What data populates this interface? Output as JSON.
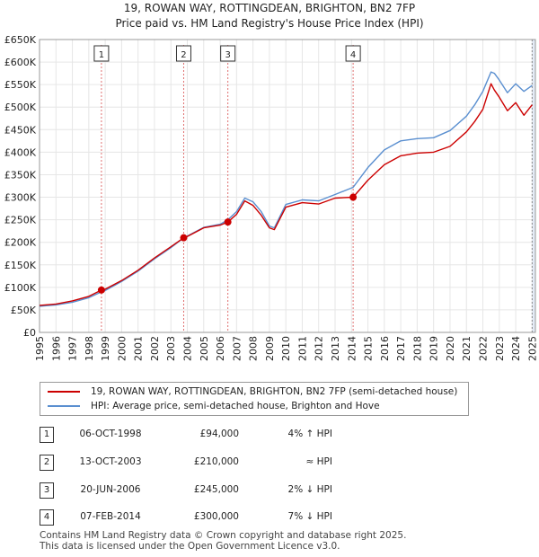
{
  "title_line1": "19, ROWAN WAY, ROTTINGDEAN, BRIGHTON, BN2 7FP",
  "title_line2": "Price paid vs. HM Land Registry's House Price Index (HPI)",
  "legend": {
    "property_label": "19, ROWAN WAY, ROTTINGDEAN, BRIGHTON, BN2 7FP (semi-detached house)",
    "hpi_label": "HPI: Average price, semi-detached house, Brighton and Hove"
  },
  "colors": {
    "property": "#cc0000",
    "hpi": "#5a8fd0",
    "shade": "#dde6f4",
    "grid": "#e6e6e6"
  },
  "sales": [
    {
      "num": "1",
      "date": "06-OCT-1998",
      "price": "£94,000",
      "hpi": "4% ↑ HPI"
    },
    {
      "num": "2",
      "date": "13-OCT-2003",
      "price": "£210,000",
      "hpi": "≈ HPI"
    },
    {
      "num": "3",
      "date": "20-JUN-2006",
      "price": "£245,000",
      "hpi": "2% ↓ HPI"
    },
    {
      "num": "4",
      "date": "07-FEB-2014",
      "price": "£300,000",
      "hpi": "7% ↓ HPI"
    }
  ],
  "footer_line1": "Contains HM Land Registry data © Crown copyright and database right 2025.",
  "footer_line2": "This data is licensed under the Open Government Licence v3.0.",
  "chart_data": {
    "type": "line",
    "title": "19, ROWAN WAY, ROTTINGDEAN, BRIGHTON, BN2 7FP — Price paid vs. HM Land Registry's House Price Index (HPI)",
    "xlabel": "",
    "ylabel": "",
    "xlim": [
      1995,
      2025.2
    ],
    "ylim": [
      0,
      650000
    ],
    "y_ticks": [
      0,
      50000,
      100000,
      150000,
      200000,
      250000,
      300000,
      350000,
      400000,
      450000,
      500000,
      550000,
      600000,
      650000
    ],
    "y_tick_labels": [
      "£0",
      "£50K",
      "£100K",
      "£150K",
      "£200K",
      "£250K",
      "£300K",
      "£350K",
      "£400K",
      "£450K",
      "£500K",
      "£550K",
      "£600K",
      "£650K"
    ],
    "x_ticks": [
      1995,
      1996,
      1997,
      1998,
      1999,
      2000,
      2001,
      2002,
      2003,
      2004,
      2005,
      2006,
      2007,
      2008,
      2009,
      2010,
      2011,
      2012,
      2013,
      2014,
      2015,
      2016,
      2017,
      2018,
      2019,
      2020,
      2021,
      2022,
      2023,
      2024,
      2025
    ],
    "grid": true,
    "legend_position": "below",
    "series": [
      {
        "name": "19, ROWAN WAY, ROTTINGDEAN, BRIGHTON, BN2 7FP (semi-detached house)",
        "x": [
          1995,
          1996,
          1997,
          1998,
          1998.77,
          1999,
          2000,
          2001,
          2002,
          2003,
          2003.78,
          2004,
          2005,
          2006,
          2006.47,
          2007,
          2007.5,
          2008,
          2008.5,
          2009,
          2009.3,
          2010,
          2011,
          2012,
          2013,
          2014.1,
          2015,
          2016,
          2017,
          2018,
          2019,
          2020,
          2021,
          2021.5,
          2022,
          2022.5,
          2022.7,
          2023,
          2023.5,
          2024,
          2024.5,
          2025
        ],
        "values": [
          60000,
          63000,
          70000,
          80000,
          94000,
          96000,
          115000,
          138000,
          165000,
          190000,
          210000,
          213000,
          232000,
          238000,
          245000,
          262000,
          292000,
          282000,
          260000,
          232000,
          228000,
          278000,
          288000,
          285000,
          298000,
          300000,
          338000,
          372000,
          392000,
          398000,
          400000,
          413000,
          445000,
          468000,
          495000,
          552000,
          538000,
          522000,
          492000,
          510000,
          482000,
          505000
        ]
      },
      {
        "name": "HPI: Average price, semi-detached house, Brighton and Hove",
        "x": [
          1995,
          1996,
          1997,
          1998,
          1998.77,
          1999,
          2000,
          2001,
          2002,
          2003,
          2003.78,
          2004,
          2005,
          2006,
          2006.47,
          2007,
          2007.5,
          2008,
          2008.5,
          2009,
          2009.3,
          2010,
          2011,
          2012,
          2013,
          2014.1,
          2015,
          2016,
          2017,
          2018,
          2019,
          2020,
          2021,
          2021.5,
          2022,
          2022.5,
          2022.7,
          2023,
          2023.5,
          2024,
          2024.5,
          2025
        ],
        "values": [
          58000,
          61000,
          67000,
          77000,
          90000,
          93000,
          113000,
          136000,
          163000,
          188000,
          210000,
          214000,
          233000,
          240000,
          250000,
          268000,
          298000,
          290000,
          268000,
          236000,
          232000,
          284000,
          294000,
          292000,
          306000,
          322000,
          366000,
          405000,
          425000,
          430000,
          432000,
          448000,
          480000,
          505000,
          535000,
          578000,
          575000,
          560000,
          532000,
          552000,
          535000,
          548000
        ]
      }
    ],
    "sale_markers": [
      {
        "label": "1",
        "x": 1998.77,
        "value": 94000
      },
      {
        "label": "2",
        "x": 2003.78,
        "value": 210000
      },
      {
        "label": "3",
        "x": 2006.47,
        "value": 245000
      },
      {
        "label": "4",
        "x": 2014.1,
        "value": 300000
      }
    ],
    "shaded_region_start": 2025.0
  }
}
